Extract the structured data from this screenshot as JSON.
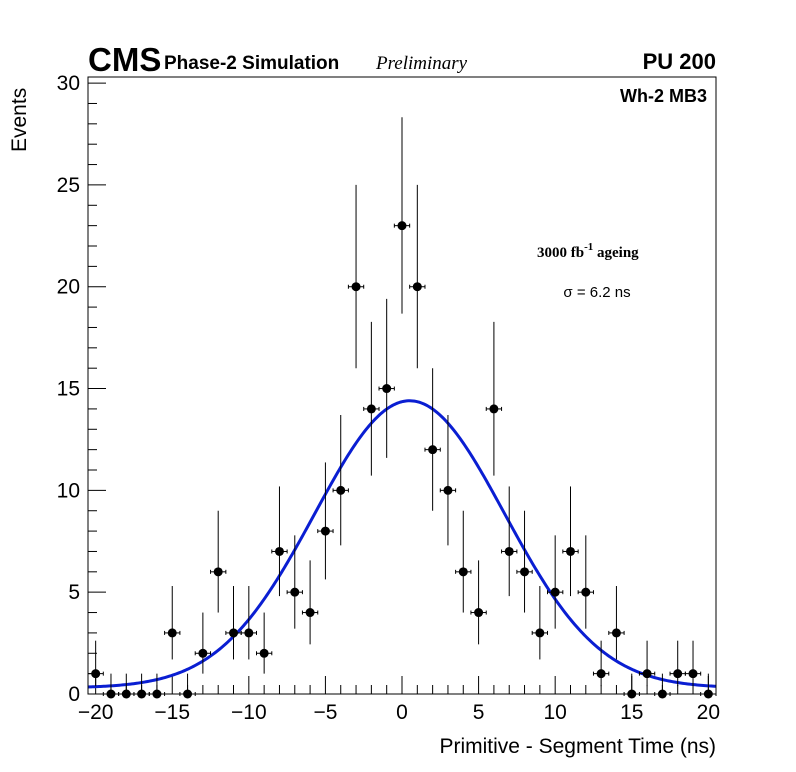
{
  "chart_data": {
    "type": "scatter",
    "header": {
      "experiment": "CMS",
      "subtitle": "Phase-2 Simulation",
      "status": "Preliminary",
      "pileup": "PU 200"
    },
    "annotations": {
      "chamber": "Wh-2 MB3",
      "ageing_prefix": "3000 fb",
      "ageing_exponent": "-1",
      "ageing_suffix": " ageing",
      "sigma": "σ = 6.2 ns"
    },
    "xlabel": "Primitive - Segment Time (ns)",
    "ylabel": "Events",
    "xlim": [
      -20.5,
      20.5
    ],
    "ylim": [
      0,
      30.3
    ],
    "xticks": [
      -20,
      -15,
      -10,
      -5,
      0,
      5,
      10,
      15,
      20
    ],
    "xtick_labels": [
      "−20",
      "−15",
      "−10",
      "−5",
      "0",
      "5",
      "10",
      "15",
      "20"
    ],
    "yticks": [
      0,
      5,
      10,
      15,
      20,
      25,
      30
    ],
    "ytick_labels": [
      "0",
      "5",
      "10",
      "15",
      "20",
      "25",
      "30"
    ],
    "bin_width": 1,
    "series": [
      {
        "name": "Data",
        "x": [
          -20,
          -19,
          -18,
          -17,
          -16,
          -15,
          -14,
          -13,
          -12,
          -11,
          -10,
          -9,
          -8,
          -7,
          -6,
          -5,
          -4,
          -3,
          -2,
          -1,
          0,
          1,
          2,
          3,
          4,
          5,
          6,
          7,
          8,
          9,
          10,
          11,
          12,
          13,
          14,
          15,
          16,
          17,
          18,
          19,
          20
        ],
        "y": [
          1,
          0,
          0,
          0,
          0,
          3,
          0,
          2,
          6,
          3,
          3,
          2,
          7,
          5,
          4,
          8,
          10,
          20,
          14,
          15,
          23,
          20,
          12,
          10,
          6,
          4,
          14,
          7,
          6,
          3,
          5,
          7,
          5,
          1,
          3,
          0,
          1,
          0,
          1,
          1,
          0
        ]
      },
      {
        "name": "Gaussian fit",
        "color": "#0a1ed2",
        "amplitude": 14.1,
        "mean": 0.5,
        "sigma": 6.2,
        "offset": 0.3
      }
    ],
    "colors": {
      "marker": "#000000",
      "fit": "#0a1ed2",
      "frame": "#000000"
    }
  }
}
